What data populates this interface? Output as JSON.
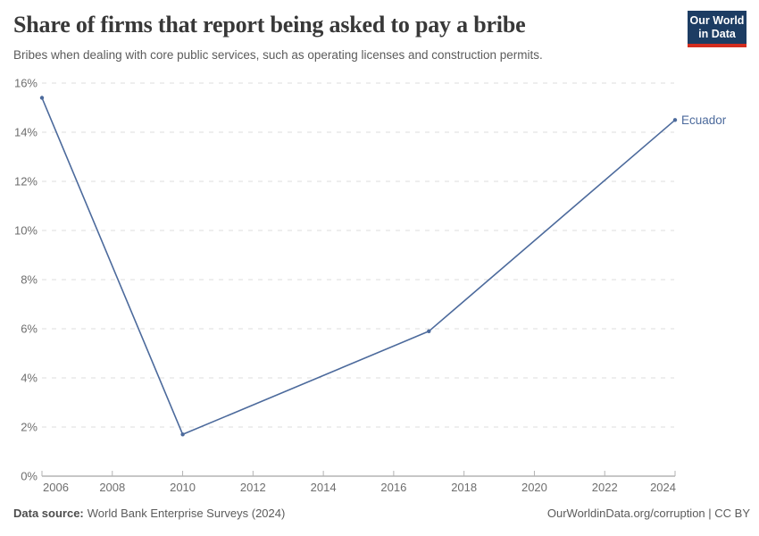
{
  "header": {
    "title": "Share of firms that report being asked to pay a bribe",
    "subtitle": "Bribes when dealing with core public services, such as operating licenses and construction permits.",
    "logo": {
      "line1": "Our World",
      "line2": "in Data"
    }
  },
  "chart_data": {
    "type": "line",
    "title": "Share of firms that report being asked to pay a bribe",
    "xlabel": "",
    "ylabel": "",
    "series": [
      {
        "name": "Ecuador",
        "points": [
          {
            "x": 2006,
            "y": 15.4
          },
          {
            "x": 2010,
            "y": 1.7
          },
          {
            "x": 2017,
            "y": 5.9
          },
          {
            "x": 2024,
            "y": 14.5
          }
        ]
      }
    ],
    "xlim": [
      2006,
      2024
    ],
    "ylim": [
      0,
      16
    ],
    "xticks": [
      2006,
      2008,
      2010,
      2012,
      2014,
      2016,
      2018,
      2020,
      2022,
      2024
    ],
    "yticks": [
      0,
      2,
      4,
      6,
      8,
      10,
      12,
      14,
      16
    ],
    "ytick_suffix": "%",
    "grid": "horizontal-dashed",
    "legend_position": "end-of-line-label",
    "entity_label": "Ecuador"
  },
  "footer": {
    "source_label": "Data source:",
    "source_text": "World Bank Enterprise Surveys (2024)",
    "link_text": "OurWorldinData.org/corruption | CC BY"
  },
  "colors": {
    "line": "#4c6a9c",
    "entity_label": "#4c6a9c",
    "grid": "#dedede",
    "axis": "#8f8f8f",
    "tick_mark": "#b3b3b3",
    "tick_label": "#6e6e6e",
    "title": "#383838",
    "subtitle": "#5b5b5b",
    "logo_navy": "#1d3d63",
    "logo_red": "#d32d1f"
  }
}
